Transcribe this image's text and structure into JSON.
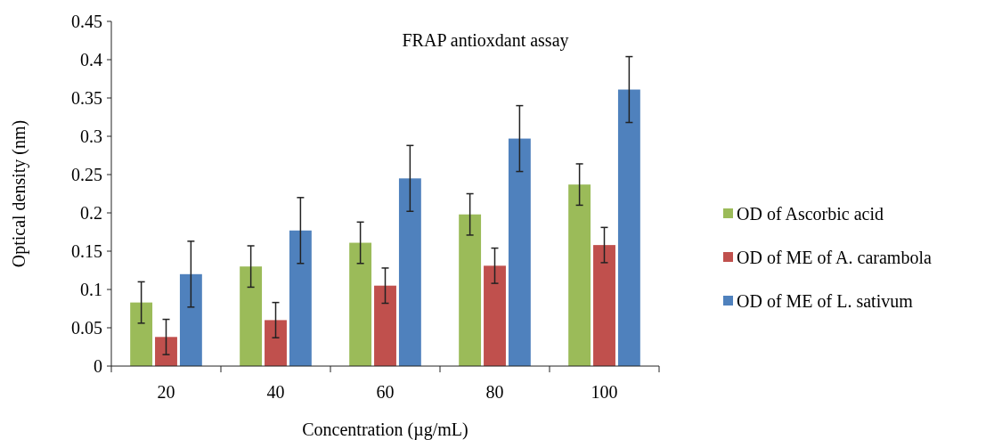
{
  "chart_data": {
    "type": "bar",
    "title": "FRAP antioxdant assay",
    "xlabel": "Concentration (µg/mL)",
    "ylabel": "Optical density (nm)",
    "categories": [
      "20",
      "40",
      "60",
      "80",
      "100"
    ],
    "series": [
      {
        "name": "OD of Ascorbic acid",
        "color": "#9bbb59",
        "values": [
          0.083,
          0.13,
          0.161,
          0.198,
          0.237
        ],
        "errors": [
          0.027,
          0.027,
          0.027,
          0.027,
          0.027
        ]
      },
      {
        "name": "OD of ME of A. carambola",
        "color": "#c0504d",
        "values": [
          0.038,
          0.06,
          0.105,
          0.131,
          0.158
        ],
        "errors": [
          0.023,
          0.023,
          0.023,
          0.023,
          0.023
        ]
      },
      {
        "name": "OD of ME of L. sativum",
        "color": "#4f81bd",
        "values": [
          0.12,
          0.177,
          0.245,
          0.297,
          0.361
        ],
        "errors": [
          0.043,
          0.043,
          0.043,
          0.043,
          0.043
        ]
      }
    ],
    "ylim": [
      0,
      0.45
    ],
    "yticks": [
      0,
      0.05,
      0.1,
      0.15,
      0.2,
      0.25,
      0.3,
      0.35,
      0.4,
      0.45
    ],
    "grid": false,
    "legend": "right"
  }
}
